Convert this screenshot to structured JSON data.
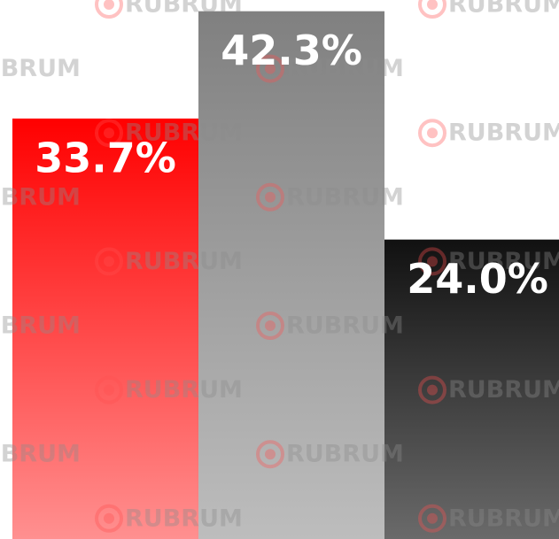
{
  "chart_data": {
    "type": "bar",
    "categories": [
      null,
      null,
      null
    ],
    "values": [
      33.7,
      42.3,
      24.0
    ],
    "value_labels": [
      "33.7%",
      "42.3%",
      "24.0%"
    ],
    "colors": [
      "#ff0000",
      "#808080",
      "#111111"
    ],
    "gradient_to": [
      "#ff9090",
      "#bdbdbd",
      "#6a6a6a"
    ],
    "ylim": [
      0,
      43.2
    ],
    "watermark": "RUBRUM"
  }
}
